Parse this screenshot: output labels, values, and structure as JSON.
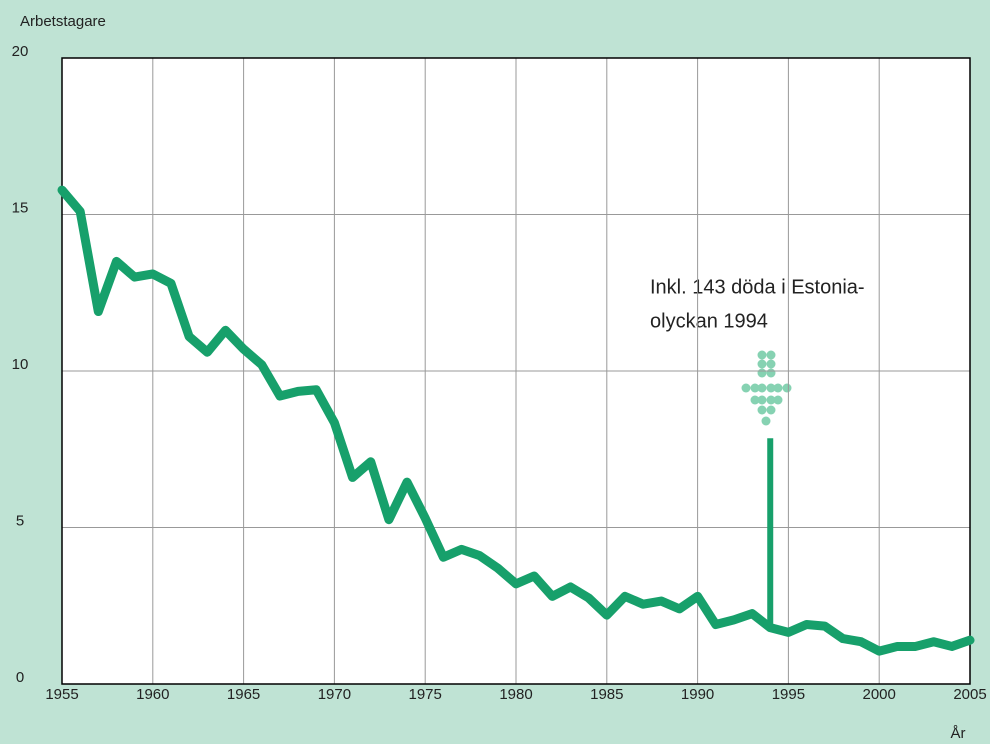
{
  "chart_data": {
    "type": "line",
    "y_label": "Arbetstagare",
    "x_label": "År",
    "x": [
      1955,
      1956,
      1957,
      1958,
      1959,
      1960,
      1961,
      1962,
      1963,
      1964,
      1965,
      1966,
      1967,
      1968,
      1969,
      1970,
      1971,
      1972,
      1973,
      1974,
      1975,
      1976,
      1977,
      1978,
      1979,
      1980,
      1981,
      1982,
      1983,
      1984,
      1985,
      1986,
      1987,
      1988,
      1989,
      1990,
      1991,
      1992,
      1993,
      1994,
      1995,
      1996,
      1997,
      1998,
      1999,
      2000,
      2001,
      2002,
      2003,
      2004,
      2005
    ],
    "series": [
      {
        "color": "#17a06b",
        "values": [
          15.78,
          15.1,
          11.9,
          13.5,
          13.0,
          13.1,
          12.8,
          11.1,
          10.6,
          11.3,
          10.7,
          10.2,
          9.2,
          9.35,
          9.4,
          8.35,
          6.6,
          7.1,
          5.25,
          6.45,
          5.3,
          4.05,
          4.3,
          4.1,
          3.7,
          3.2,
          3.45,
          2.8,
          3.1,
          2.75,
          2.2,
          2.8,
          2.55,
          2.65,
          2.4,
          2.8,
          1.9,
          2.05,
          2.25,
          1.8,
          1.65,
          1.9,
          1.85,
          1.45,
          1.35,
          1.05,
          1.2,
          1.2,
          1.35,
          1.2,
          1.4
        ]
      }
    ],
    "spike": {
      "x": 1994,
      "value": 7.85
    },
    "annotation": [
      "Inkl. 143 döda i Estonia-",
      "olyckan 1994"
    ],
    "xlim": [
      1955,
      2005
    ],
    "xticks": [
      1955,
      1960,
      1965,
      1970,
      1975,
      1980,
      1985,
      1990,
      1995,
      2000,
      2005
    ],
    "ylim": [
      0,
      20
    ],
    "yticks": [
      0,
      5,
      10,
      15,
      20
    ],
    "grid": true
  }
}
